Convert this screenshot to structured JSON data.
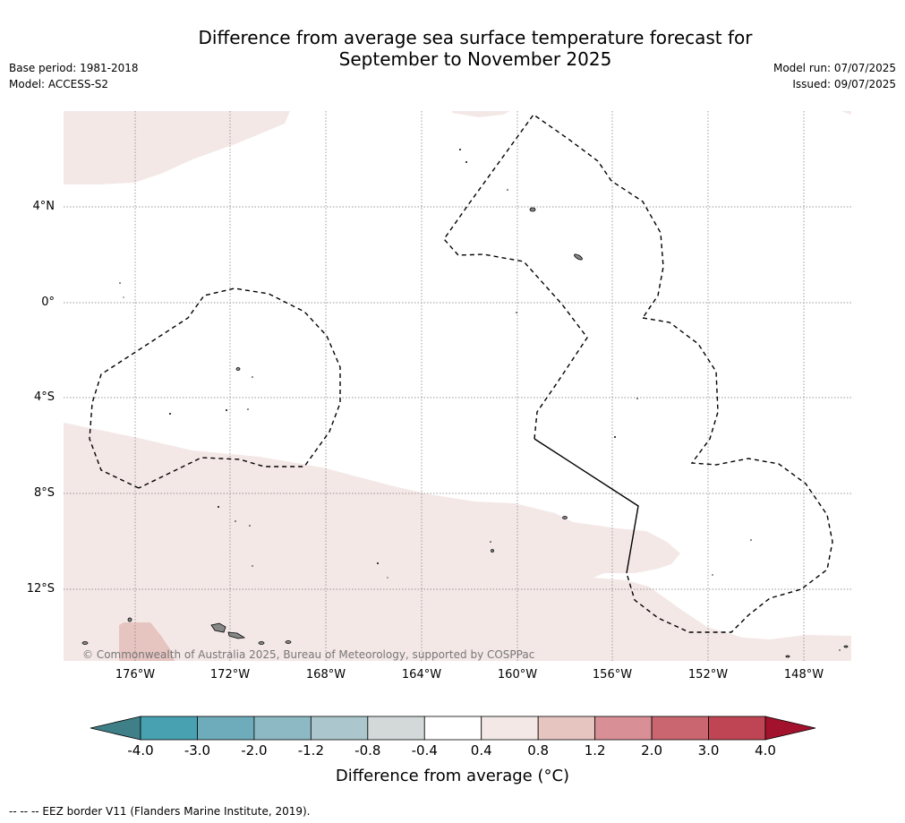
{
  "header": {
    "title_line1": "Difference from average sea surface temperature forecast for",
    "title_line2": "September to November 2025",
    "base_period": "Base period: 1981-2018",
    "model": "Model: ACCESS-S2",
    "model_run": "Model run: 07/07/2025",
    "issued": "Issued: 09/07/2025"
  },
  "map": {
    "lat_labels": [
      "4°N",
      "0°",
      "4°S",
      "8°S",
      "12°S"
    ],
    "lon_labels": [
      "176°W",
      "172°W",
      "168°W",
      "164°W",
      "160°W",
      "156°W",
      "152°W",
      "148°W"
    ],
    "copyright": "© Commonwealth of Australia 2025, Bureau of Meteorology, supported by COSPPac",
    "colors": {
      "land": "#888888",
      "warm_light": "#f4e8e7",
      "warm_med": "#e6c5c1",
      "eez": "#000000"
    }
  },
  "colorbar": {
    "title": "Difference from average (°C)",
    "tick_labels": [
      "-4.0",
      "-3.0",
      "-2.0",
      "-1.2",
      "-0.8",
      "-0.4",
      "0.4",
      "0.8",
      "1.2",
      "2.0",
      "3.0",
      "4.0"
    ],
    "colors": [
      "#3f7f88",
      "#48a1b1",
      "#6eacbb",
      "#8db9c4",
      "#abc7cd",
      "#d3d8d9",
      "#ffffff",
      "#f4e8e7",
      "#e6c5c1",
      "#d88f95",
      "#c96670",
      "#c04554",
      "#a2122c"
    ]
  },
  "footnote": "-- -- -- EEZ border V11 (Flanders Marine Institute, 2019)."
}
